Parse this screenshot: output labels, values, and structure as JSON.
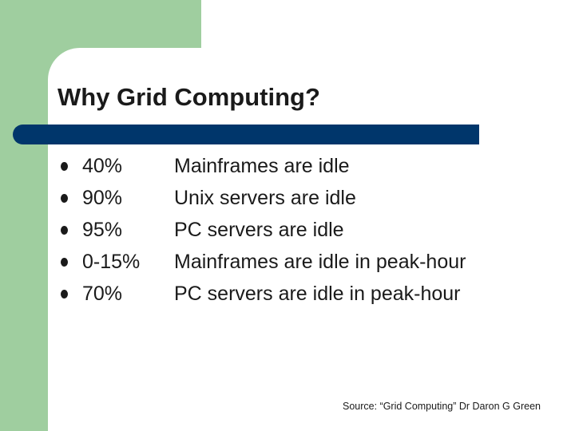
{
  "slide": {
    "title": "Why Grid Computing?",
    "bullets": [
      {
        "pct": "40%",
        "text": "Mainframes are idle"
      },
      {
        "pct": "90%",
        "text": "Unix servers are idle"
      },
      {
        "pct": "95%",
        "text": "PC servers are idle"
      },
      {
        "pct": "0-15%",
        "text": "Mainframes are idle in peak-hour"
      },
      {
        "pct": "70%",
        "text": "PC servers are idle in peak-hour"
      }
    ],
    "source": "Source: “Grid Computing” Dr Daron G Green"
  },
  "colors": {
    "background_accent": "#9fce9f",
    "title_bar": "#00366b",
    "text": "#1a1a1a"
  }
}
